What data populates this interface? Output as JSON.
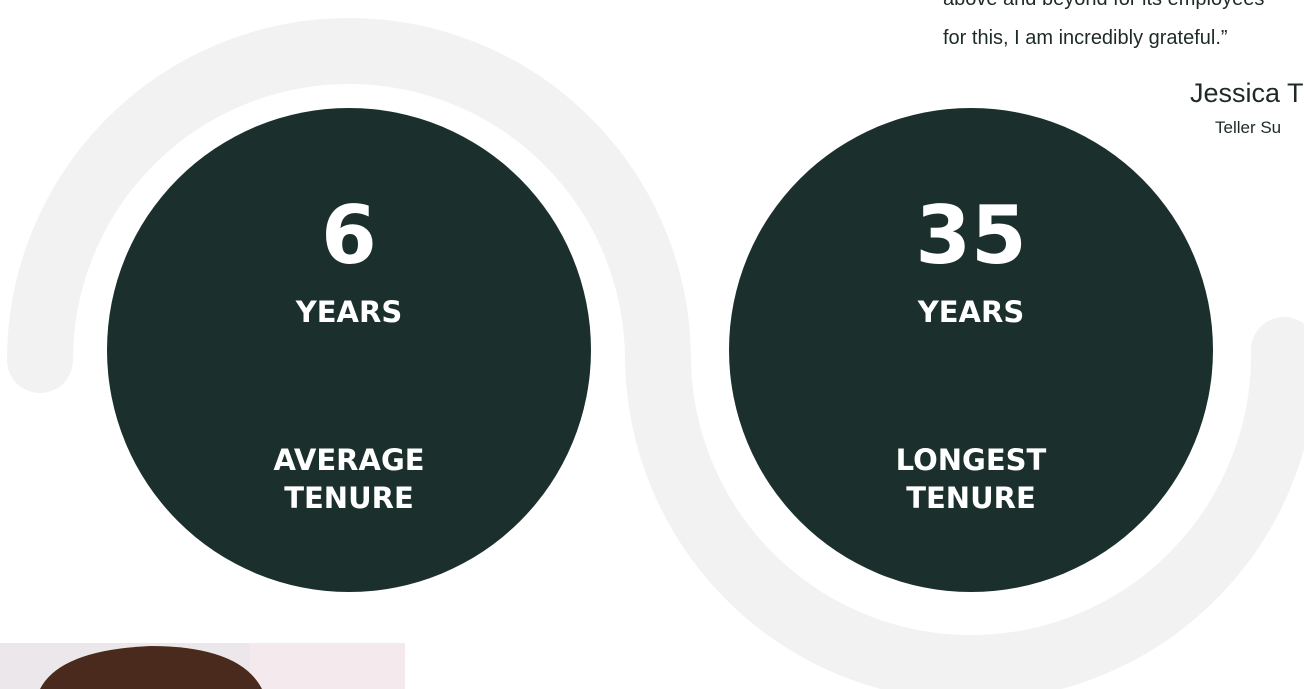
{
  "quote": {
    "lines": [
      "above and beyond for its employees",
      "for this, I am incredibly grateful.”"
    ],
    "author": "Jessica T",
    "role": "Teller Su"
  },
  "stats": [
    {
      "number": "6",
      "unit": "YEARS",
      "label_lines": [
        "AVERAGE",
        "TENURE"
      ]
    },
    {
      "number": "35",
      "unit": "YEARS",
      "label_lines": [
        "LONGEST",
        "TENURE"
      ]
    }
  ]
}
